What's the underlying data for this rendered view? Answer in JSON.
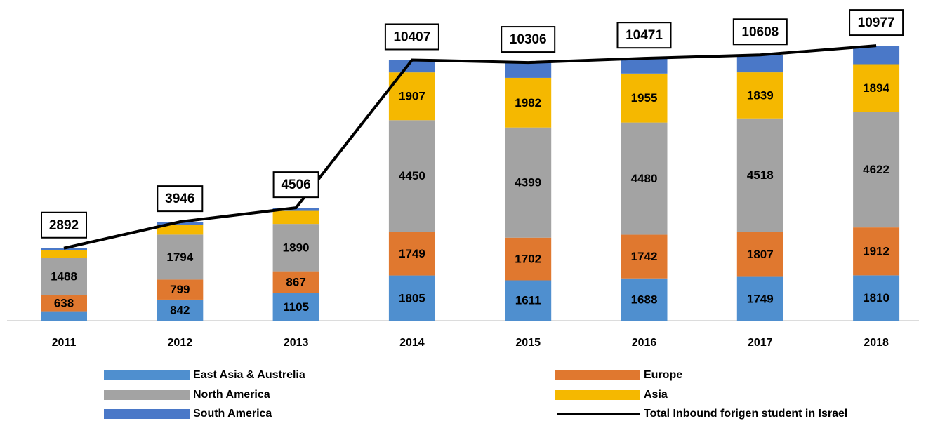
{
  "chart_data": {
    "type": "stacked-bar-line",
    "categories": [
      "2011",
      "2012",
      "2013",
      "2014",
      "2015",
      "2016",
      "2017",
      "2018"
    ],
    "series": [
      {
        "name": "East Asia & Austrelia",
        "color": "#4f8fcf",
        "values": [
          376,
          842,
          1105,
          1805,
          1611,
          1688,
          1749,
          1810
        ],
        "value_labels": [
          null,
          "842",
          "1105",
          "1805",
          "1611",
          "1688",
          "1749",
          "1810"
        ]
      },
      {
        "name": "Europe",
        "color": "#e0782f",
        "values": [
          638,
          799,
          867,
          1749,
          1702,
          1742,
          1807,
          1912
        ]
      },
      {
        "name": "North America",
        "color": "#a3a3a3",
        "values": [
          1488,
          1794,
          1890,
          4450,
          4399,
          4480,
          4518,
          4622
        ]
      },
      {
        "name": "Asia",
        "color": "#f5b800",
        "values": [
          310,
          400,
          520,
          1907,
          1982,
          1955,
          1839,
          1894
        ],
        "value_labels": [
          null,
          null,
          null,
          "1907",
          "1982",
          "1955",
          "1839",
          "1894"
        ]
      },
      {
        "name": "South America",
        "color": "#4a78c8",
        "values": [
          80,
          111,
          124,
          496,
          612,
          606,
          695,
          739
        ],
        "data_labels": false
      },
      {
        "name": "Total Inbound forigen student in Israel",
        "type": "line",
        "color": "#000000",
        "values": [
          2892,
          3946,
          4506,
          10407,
          10306,
          10471,
          10608,
          10977
        ]
      }
    ]
  }
}
